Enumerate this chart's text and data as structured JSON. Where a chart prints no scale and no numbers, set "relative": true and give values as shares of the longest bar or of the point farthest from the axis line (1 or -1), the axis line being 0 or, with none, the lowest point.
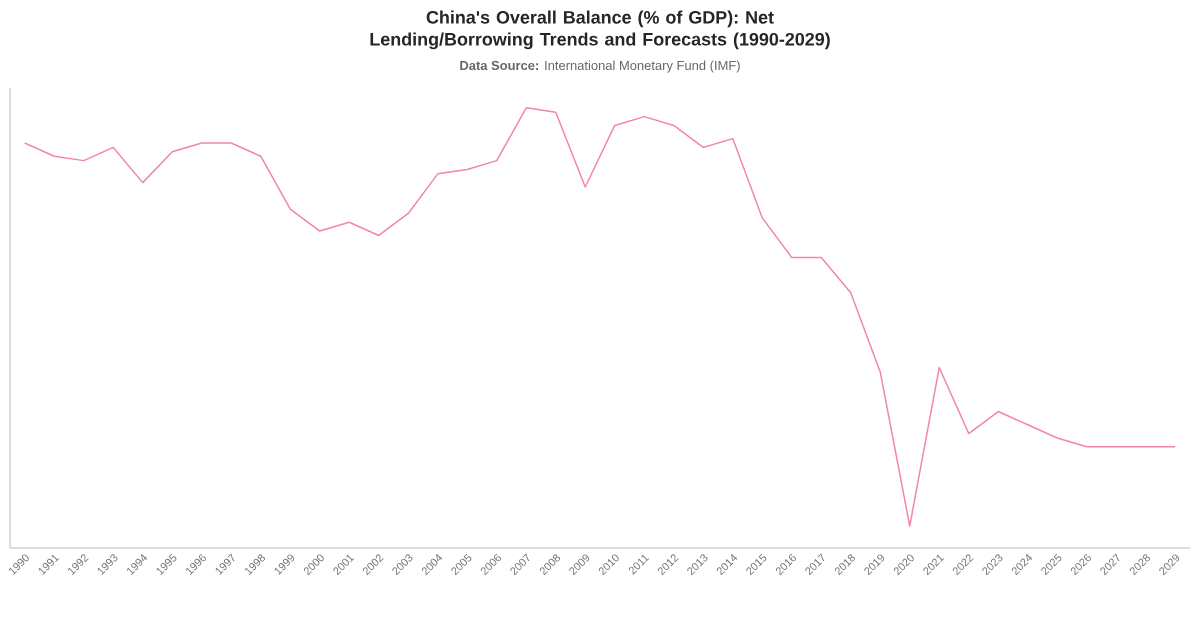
{
  "chart_data": {
    "type": "line",
    "title": "China's Overall Balance (% of GDP): Net Lending/Borrowing Trends and Forecasts (1990-2029)",
    "subtitle": "**Data Source:** International Monetary Fund (IMF)",
    "relative": true,
    "categories": [
      "1990",
      "1991",
      "1992",
      "1993",
      "1994",
      "1995",
      "1996",
      "1997",
      "1998",
      "1999",
      "2000",
      "2001",
      "2002",
      "2003",
      "2004",
      "2005",
      "2006",
      "2007",
      "2008",
      "2009",
      "2010",
      "2011",
      "2012",
      "2013",
      "2014",
      "2015",
      "2016",
      "2017",
      "2018",
      "2019",
      "2020",
      "2021",
      "2022",
      "2023",
      "2024",
      "2025",
      "2026",
      "2027",
      "2028",
      "2029"
    ],
    "series": [
      {
        "color": "#f284b0",
        "values": [
          0.92,
          0.89,
          0.88,
          0.91,
          0.83,
          0.9,
          0.92,
          0.92,
          0.89,
          0.77,
          0.72,
          0.74,
          0.71,
          0.76,
          0.85,
          0.86,
          0.88,
          1.0,
          0.99,
          0.82,
          0.96,
          0.98,
          0.96,
          0.91,
          0.93,
          0.75,
          0.66,
          0.66,
          0.58,
          0.4,
          0.05,
          0.41,
          0.26,
          0.31,
          0.28,
          0.25,
          0.23,
          0.23,
          0.23,
          0.23
        ]
      }
    ]
  }
}
